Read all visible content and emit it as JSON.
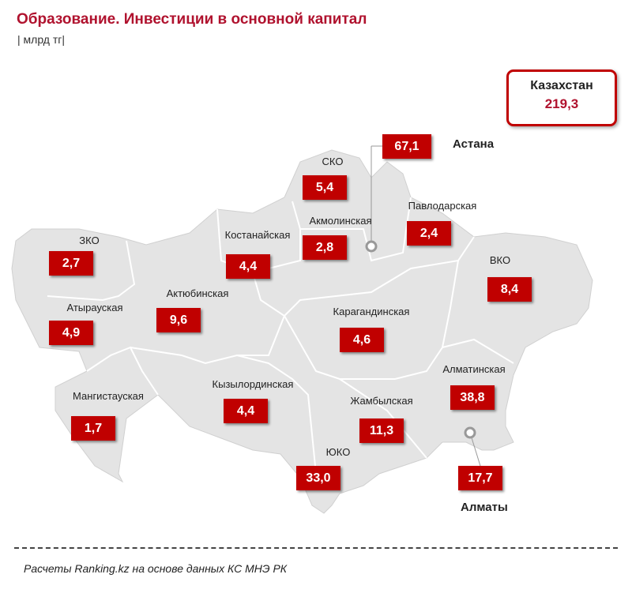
{
  "title": "Образование. Инвестиции в основной капитал",
  "unit": "| млрд тг|",
  "total": {
    "name": "Казахстан",
    "value": "219,3"
  },
  "regions": [
    {
      "name": "ЗКО",
      "value": "2,7"
    },
    {
      "name": "Атырауская",
      "value": "4,9"
    },
    {
      "name": "Мангистауская",
      "value": "1,7"
    },
    {
      "name": "Актюбинская",
      "value": "9,6"
    },
    {
      "name": "Костанайская",
      "value": "4,4"
    },
    {
      "name": "СКО",
      "value": "5,4"
    },
    {
      "name": "Акмолинская",
      "value": "2,8"
    },
    {
      "name": "Астана",
      "value": "67,1"
    },
    {
      "name": "Павлодарская",
      "value": "2,4"
    },
    {
      "name": "ВКО",
      "value": "8,4"
    },
    {
      "name": "Карагандинская",
      "value": "4,6"
    },
    {
      "name": "Алматинская",
      "value": "38,8"
    },
    {
      "name": "Жамбылская",
      "value": "11,3"
    },
    {
      "name": "Кызылординская",
      "value": "4,4"
    },
    {
      "name": "ЮКО",
      "value": "33,0"
    },
    {
      "name": "Алматы",
      "value": "17,7"
    }
  ],
  "footer": "Расчеты Ranking.kz на основе данных  КС МНЭ РК",
  "colors": {
    "accent": "#c00000",
    "map": "#e4e4e4"
  }
}
